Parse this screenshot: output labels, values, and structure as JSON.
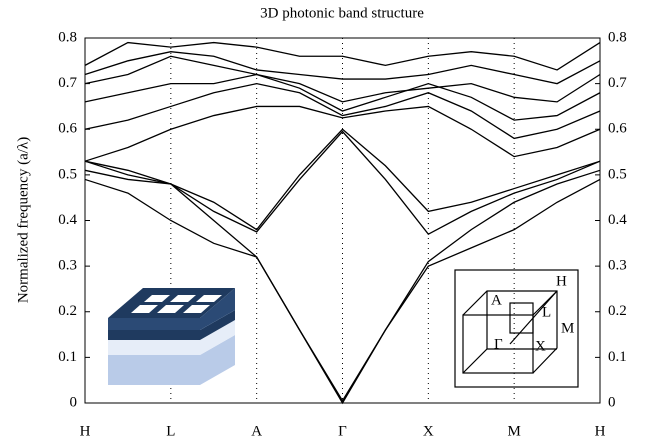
{
  "chart_data": {
    "type": "line",
    "title": "3D photonic band structure",
    "y_label": "Normalized frequency (a/λ)",
    "x": [
      0,
      0.5,
      1,
      1.5,
      2,
      2.5,
      3,
      3.5,
      4,
      4.5,
      5,
      5.5,
      6
    ],
    "xlim": [
      0,
      6
    ],
    "xticks": [
      {
        "value": 0,
        "label": "H"
      },
      {
        "value": 1,
        "label": "L"
      },
      {
        "value": 2,
        "label": "A"
      },
      {
        "value": 3,
        "label": "Γ"
      },
      {
        "value": 4,
        "label": "X"
      },
      {
        "value": 5,
        "label": "M"
      },
      {
        "value": 6,
        "label": "H"
      }
    ],
    "ylim": [
      0,
      0.8
    ],
    "yticks": [
      0,
      0.1,
      0.2,
      0.3,
      0.4,
      0.5,
      0.6,
      0.7,
      0.8
    ],
    "series": [
      {
        "color": "#000000",
        "values": [
          0.49,
          0.46,
          0.4,
          0.35,
          0.32,
          0.16,
          0,
          0.16,
          0.3,
          0.34,
          0.38,
          0.44,
          0.49
        ]
      },
      {
        "color": "#000000",
        "values": [
          0.51,
          0.49,
          0.48,
          0.4,
          0.32,
          0.16,
          0.005,
          0.16,
          0.31,
          0.38,
          0.44,
          0.48,
          0.51
        ]
      },
      {
        "color": "#000000",
        "values": [
          0.53,
          0.5,
          0.48,
          0.42,
          0.375,
          0.49,
          0.595,
          0.49,
          0.37,
          0.42,
          0.46,
          0.49,
          0.53
        ]
      },
      {
        "color": "#000000",
        "values": [
          0.53,
          0.51,
          0.48,
          0.44,
          0.38,
          0.5,
          0.6,
          0.52,
          0.42,
          0.44,
          0.47,
          0.5,
          0.53
        ]
      },
      {
        "color": "#000000",
        "values": [
          0.53,
          0.56,
          0.6,
          0.63,
          0.65,
          0.65,
          0.625,
          0.64,
          0.65,
          0.6,
          0.54,
          0.56,
          0.6
        ]
      },
      {
        "color": "#000000",
        "values": [
          0.6,
          0.62,
          0.65,
          0.68,
          0.7,
          0.68,
          0.63,
          0.65,
          0.68,
          0.64,
          0.58,
          0.6,
          0.64
        ]
      },
      {
        "color": "#000000",
        "values": [
          0.66,
          0.68,
          0.7,
          0.7,
          0.72,
          0.69,
          0.64,
          0.67,
          0.7,
          0.67,
          0.62,
          0.63,
          0.68
        ]
      },
      {
        "color": "#000000",
        "values": [
          0.7,
          0.72,
          0.76,
          0.74,
          0.72,
          0.7,
          0.66,
          0.68,
          0.69,
          0.7,
          0.67,
          0.66,
          0.72
        ]
      },
      {
        "color": "#000000",
        "values": [
          0.72,
          0.75,
          0.77,
          0.76,
          0.73,
          0.72,
          0.71,
          0.71,
          0.72,
          0.74,
          0.72,
          0.7,
          0.75
        ]
      },
      {
        "color": "#000000",
        "values": [
          0.74,
          0.79,
          0.78,
          0.79,
          0.78,
          0.76,
          0.76,
          0.74,
          0.76,
          0.77,
          0.76,
          0.73,
          0.79
        ]
      }
    ],
    "annotations": [
      "H",
      "A",
      "L",
      "M",
      "Γ",
      "X"
    ]
  }
}
